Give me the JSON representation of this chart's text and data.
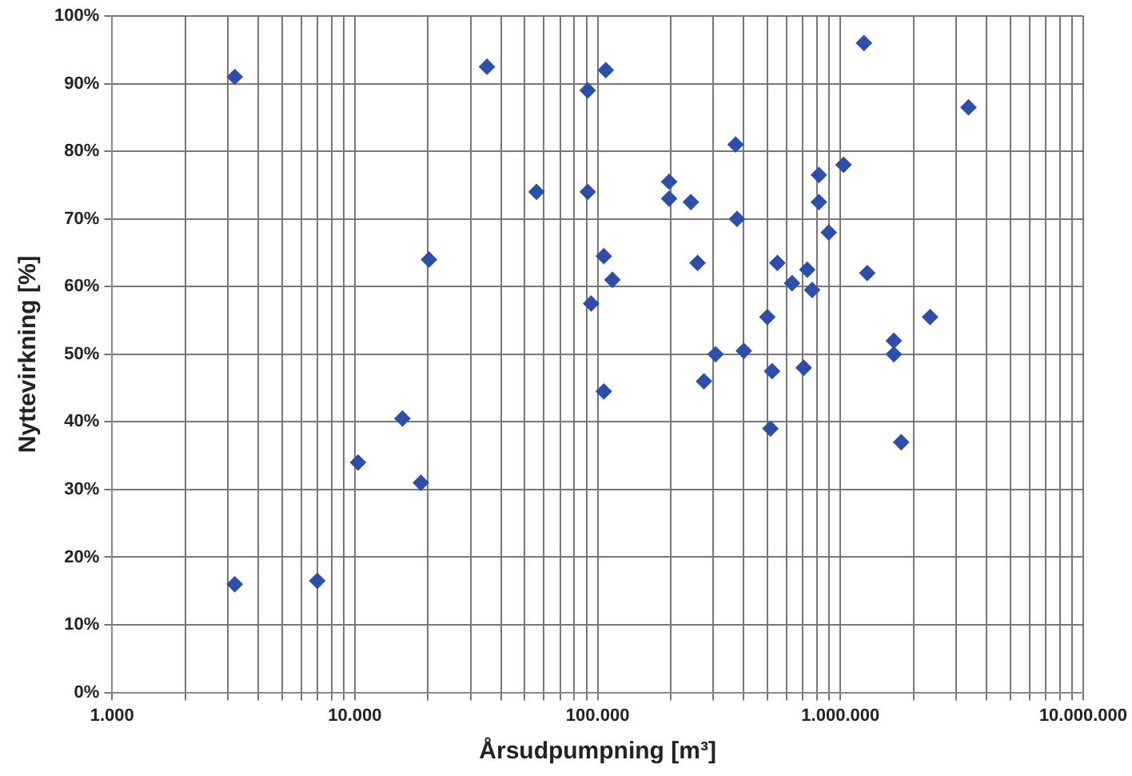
{
  "chart_data": {
    "type": "scatter",
    "xlabel": "Årsudpumpning [m³]",
    "ylabel": "Nyttevirkning [%]",
    "log": "x",
    "grid": true,
    "legend": false,
    "marker": "diamond",
    "xlim": [
      1000,
      10000000
    ],
    "xticks": [
      {
        "value": 1000,
        "label": "1.000"
      },
      {
        "value": 2000,
        "label": null
      },
      {
        "value": 3000,
        "label": null
      },
      {
        "value": 4000,
        "label": null
      },
      {
        "value": 5000,
        "label": null
      },
      {
        "value": 6000,
        "label": null
      },
      {
        "value": 7000,
        "label": null
      },
      {
        "value": 8000,
        "label": null
      },
      {
        "value": 9000,
        "label": null
      },
      {
        "value": 10000,
        "label": "10.000"
      },
      {
        "value": 20000,
        "label": null
      },
      {
        "value": 30000,
        "label": null
      },
      {
        "value": 40000,
        "label": null
      },
      {
        "value": 50000,
        "label": null
      },
      {
        "value": 60000,
        "label": null
      },
      {
        "value": 70000,
        "label": null
      },
      {
        "value": 80000,
        "label": null
      },
      {
        "value": 90000,
        "label": null
      },
      {
        "value": 100000,
        "label": "100.000"
      },
      {
        "value": 200000,
        "label": null
      },
      {
        "value": 300000,
        "label": null
      },
      {
        "value": 400000,
        "label": null
      },
      {
        "value": 500000,
        "label": null
      },
      {
        "value": 600000,
        "label": null
      },
      {
        "value": 700000,
        "label": null
      },
      {
        "value": 800000,
        "label": null
      },
      {
        "value": 900000,
        "label": null
      },
      {
        "value": 1000000,
        "label": "1.000.000"
      },
      {
        "value": 2000000,
        "label": null
      },
      {
        "value": 3000000,
        "label": null
      },
      {
        "value": 4000000,
        "label": null
      },
      {
        "value": 5000000,
        "label": null
      },
      {
        "value": 6000000,
        "label": null
      },
      {
        "value": 7000000,
        "label": null
      },
      {
        "value": 8000000,
        "label": null
      },
      {
        "value": 9000000,
        "label": null
      },
      {
        "value": 10000000,
        "label": "10.000.000"
      }
    ],
    "ylim": [
      0,
      100
    ],
    "yticks": [
      {
        "value": 0,
        "label": "0%"
      },
      {
        "value": 10,
        "label": "10%"
      },
      {
        "value": 20,
        "label": "20%"
      },
      {
        "value": 30,
        "label": "30%"
      },
      {
        "value": 40,
        "label": "40%"
      },
      {
        "value": 50,
        "label": "50%"
      },
      {
        "value": 60,
        "label": "60%"
      },
      {
        "value": 70,
        "label": "70%"
      },
      {
        "value": 80,
        "label": "80%"
      },
      {
        "value": 90,
        "label": "90%"
      },
      {
        "value": 100,
        "label": "100%"
      }
    ],
    "series": [
      {
        "color": "#2e4fa8",
        "x": [
          3200,
          3200,
          7000,
          10300,
          15700,
          18700,
          20200,
          35000,
          56000,
          91000,
          91000,
          108000,
          94000,
          106000,
          115000,
          106000,
          1250000,
          3370000,
          370000,
          1030000,
          815000,
          197000,
          197000,
          242000,
          815000,
          375000,
          895000,
          258000,
          550000,
          730000,
          1290000,
          632000,
          765000,
          500000,
          2340000,
          1660000,
          1660000,
          306000,
          400000,
          706000,
          523000,
          274000,
          515000,
          1780000
        ],
        "values": [
          91,
          16,
          16.5,
          34,
          40.5,
          31,
          64,
          92.5,
          74,
          89,
          74,
          92,
          57.5,
          64.5,
          61,
          44.5,
          96,
          86.5,
          81,
          78,
          76.5,
          75.5,
          73,
          72.5,
          72.5,
          70,
          68,
          63.5,
          63.5,
          62.5,
          62,
          60.5,
          59.5,
          55.5,
          55.5,
          52,
          50,
          50,
          50.5,
          48,
          47.5,
          46,
          39,
          37
        ]
      }
    ]
  }
}
